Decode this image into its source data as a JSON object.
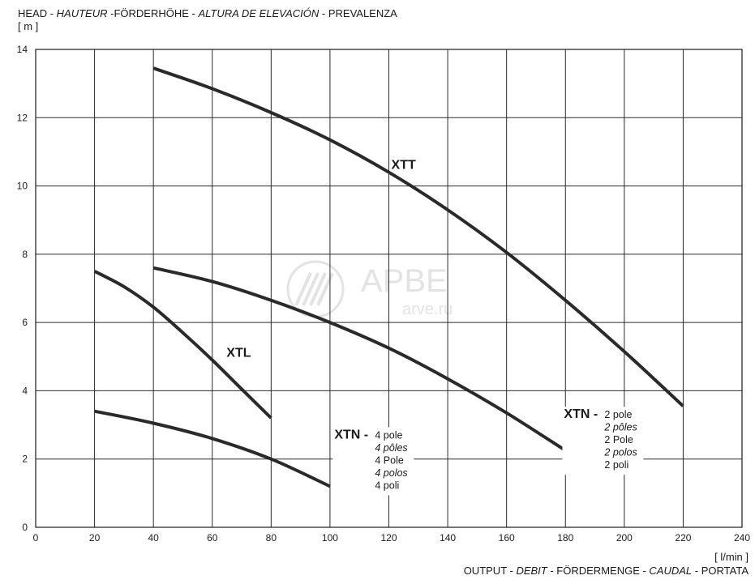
{
  "ytitle": {
    "parts": [
      "HEAD - ",
      "HAUTEUR",
      " -FÖRDERHÖHE - ",
      "ALTURA DE ELEVACIÓN",
      " - PREVALENZA"
    ],
    "unit": "[ m ]"
  },
  "xtitle": {
    "unit": "[ l/min ]",
    "parts": [
      "OUTPUT - ",
      "DEBIT",
      " - FÖRDERMENGE - ",
      "CAUDAL",
      " - PORTATA"
    ]
  },
  "watermark": {
    "brand": "АРВЕ",
    "site": "arve.ru"
  },
  "chart_data": {
    "type": "line",
    "xlim": [
      0,
      240
    ],
    "ylim": [
      0,
      14
    ],
    "xticks": [
      0,
      20,
      40,
      60,
      80,
      100,
      120,
      140,
      160,
      180,
      200,
      220,
      240
    ],
    "yticks": [
      0,
      2,
      4,
      6,
      8,
      10,
      12,
      14
    ],
    "grid": true,
    "series": [
      {
        "name": "XTT",
        "x": [
          40,
          60,
          80,
          100,
          120,
          140,
          160,
          180,
          200,
          220
        ],
        "y": [
          13.45,
          12.85,
          12.15,
          11.35,
          10.4,
          9.3,
          8.05,
          6.65,
          5.15,
          3.55
        ]
      },
      {
        "name": "XTN",
        "x": [
          40,
          60,
          80,
          100,
          120,
          140,
          160,
          180
        ],
        "y": [
          7.6,
          7.2,
          6.65,
          6.0,
          5.25,
          4.35,
          3.35,
          2.25
        ]
      },
      {
        "name": "XTL",
        "x": [
          20,
          30,
          40,
          50,
          60,
          70,
          80
        ],
        "y": [
          7.5,
          7.05,
          6.45,
          5.7,
          4.9,
          4.05,
          3.2
        ]
      },
      {
        "name": "XTN",
        "x": [
          20,
          40,
          60,
          80,
          100
        ],
        "y": [
          3.4,
          3.05,
          2.6,
          2.0,
          1.2
        ]
      }
    ],
    "annotations": [
      {
        "label": "XTT",
        "x": 125,
        "y": 10.5
      },
      {
        "label": "XTL",
        "x": 69,
        "y": 5.0
      },
      {
        "label": "XTN - ",
        "variants": [
          "2 pole",
          "2 pôles",
          "2 Pole",
          "2 polos",
          "2 poli"
        ],
        "italic": [
          false,
          true,
          false,
          true,
          false
        ],
        "x": 179.5,
        "y": 3.2
      },
      {
        "label": "XTN - ",
        "variants": [
          "4 pole",
          "4 pôles",
          "4 Pole",
          "4 polos",
          "4 poli"
        ],
        "italic": [
          false,
          true,
          false,
          true,
          false
        ],
        "x": 101.5,
        "y": 2.6
      }
    ]
  }
}
